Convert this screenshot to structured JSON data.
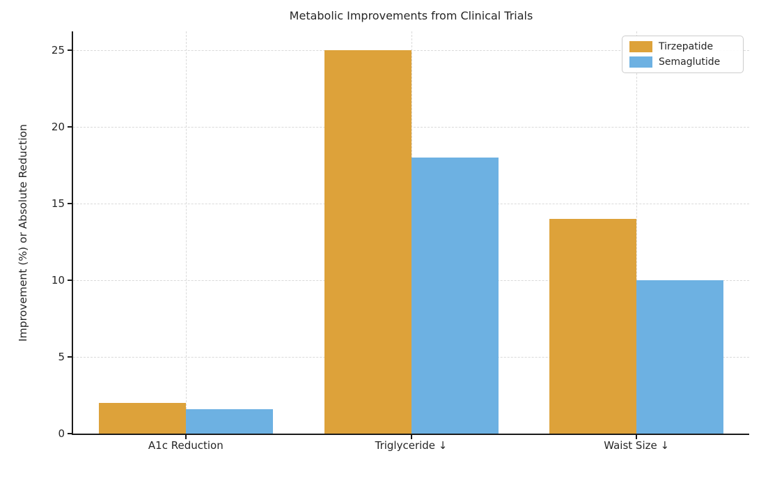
{
  "chart_data": {
    "type": "bar",
    "title": "Metabolic Improvements from Clinical Trials",
    "categories": [
      "A1c Reduction",
      "Triglyceride ↓",
      "Waist Size ↓"
    ],
    "series": [
      {
        "name": "Tirzepatide",
        "color": "#DDA23A",
        "values": [
          2.0,
          25.0,
          14.0
        ]
      },
      {
        "name": "Semaglutide",
        "color": "#6DB1E2",
        "values": [
          1.6,
          18.0,
          10.0
        ]
      }
    ],
    "xlabel": "",
    "ylabel": "Improvement (%) or Absolute Reduction",
    "yticks": [
      0,
      5,
      10,
      15,
      20,
      25
    ],
    "ylim": [
      0,
      26.25
    ],
    "grid": "dashed gridlines on both axes",
    "legend_position": "upper right",
    "colors": {
      "grid": "#d9d9d9",
      "axis": "#1a1a1a",
      "text": "#262626",
      "background": "#ffffff",
      "legend_border": "#cccccc"
    }
  }
}
